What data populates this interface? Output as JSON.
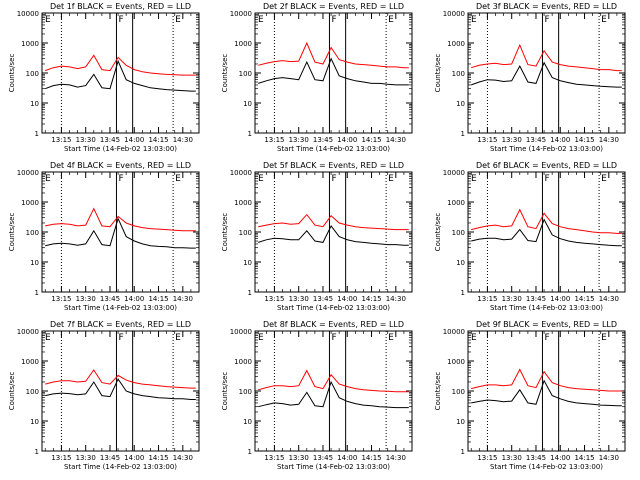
{
  "shared": {
    "xlabel": "Start Time (14-Feb-02 13:03:00)",
    "ylabel": "Counts/sec",
    "x_tick_labels": [
      "13:15",
      "13:30",
      "13:45",
      "14:00",
      "14:15",
      "14:30"
    ],
    "y_tick_labels": [
      "1",
      "10",
      "100",
      "1000",
      "10000"
    ],
    "marker_labels": [
      "E",
      "F",
      "E"
    ],
    "colors": {
      "events": "#000000",
      "lld": "#ff0000"
    }
  },
  "chart_data": [
    {
      "type": "line",
      "title": "Det 1f BLACK = Events, RED = LLD",
      "xlabel": "Start Time (14-Feb-02 13:03:00)",
      "ylabel": "Counts/sec",
      "yscale": "log",
      "xlim": [
        "13:03",
        "14:40"
      ],
      "ylim": [
        1,
        10000
      ],
      "x": [
        "13:05",
        "13:10",
        "13:15",
        "13:20",
        "13:25",
        "13:30",
        "13:35",
        "13:40",
        "13:45",
        "13:50",
        "13:55",
        "14:00",
        "14:05",
        "14:10",
        "14:15",
        "14:20",
        "14:25",
        "14:30",
        "14:35",
        "14:38"
      ],
      "vertical_lines": [
        {
          "time": "13:15",
          "style": "dotted"
        },
        {
          "time": "13:49",
          "style": "solid"
        },
        {
          "time": "13:59",
          "style": "solid"
        },
        {
          "time": "14:24",
          "style": "dotted"
        }
      ],
      "series": [
        {
          "name": "Events",
          "color": "#000000",
          "values": [
            30,
            38,
            42,
            40,
            34,
            38,
            90,
            32,
            30,
            250,
            60,
            45,
            38,
            32,
            30,
            28,
            27,
            26,
            25,
            25
          ]
        },
        {
          "name": "LLD",
          "color": "#ff0000",
          "values": [
            120,
            150,
            170,
            160,
            140,
            160,
            390,
            130,
            120,
            330,
            180,
            130,
            110,
            100,
            95,
            90,
            88,
            85,
            85,
            85
          ]
        }
      ]
    },
    {
      "type": "line",
      "title": "Det 2f BLACK = Events, RED = LLD",
      "xlabel": "Start Time (14-Feb-02 13:03:00)",
      "ylabel": "Counts/sec",
      "yscale": "log",
      "xlim": [
        "13:03",
        "14:40"
      ],
      "ylim": [
        1,
        10000
      ],
      "x": [
        "13:05",
        "13:10",
        "13:15",
        "13:20",
        "13:25",
        "13:30",
        "13:35",
        "13:40",
        "13:45",
        "13:50",
        "13:55",
        "14:00",
        "14:05",
        "14:10",
        "14:15",
        "14:20",
        "14:25",
        "14:30",
        "14:35",
        "14:38"
      ],
      "vertical_lines": [
        {
          "time": "13:15",
          "style": "dotted"
        },
        {
          "time": "13:49",
          "style": "solid"
        },
        {
          "time": "13:59",
          "style": "solid"
        },
        {
          "time": "14:24",
          "style": "dotted"
        }
      ],
      "series": [
        {
          "name": "Events",
          "color": "#000000",
          "values": [
            45,
            55,
            65,
            70,
            65,
            60,
            230,
            60,
            55,
            300,
            80,
            65,
            55,
            50,
            45,
            45,
            42,
            40,
            40,
            40
          ]
        },
        {
          "name": "LLD",
          "color": "#ff0000",
          "values": [
            180,
            210,
            240,
            260,
            240,
            250,
            1000,
            230,
            200,
            700,
            280,
            230,
            200,
            190,
            180,
            170,
            160,
            160,
            150,
            150
          ]
        }
      ]
    },
    {
      "type": "line",
      "title": "Det 3f BLACK = Events, RED = LLD",
      "xlabel": "Start Time (14-Feb-02 13:03:00)",
      "ylabel": "Counts/sec",
      "yscale": "log",
      "xlim": [
        "13:03",
        "14:40"
      ],
      "ylim": [
        1,
        10000
      ],
      "x": [
        "13:05",
        "13:10",
        "13:15",
        "13:20",
        "13:25",
        "13:30",
        "13:35",
        "13:40",
        "13:45",
        "13:50",
        "13:55",
        "14:00",
        "14:05",
        "14:10",
        "14:15",
        "14:20",
        "14:25",
        "14:30",
        "14:35",
        "14:38"
      ],
      "vertical_lines": [
        {
          "time": "13:15",
          "style": "dotted"
        },
        {
          "time": "13:49",
          "style": "solid"
        },
        {
          "time": "13:59",
          "style": "solid"
        },
        {
          "time": "14:24",
          "style": "dotted"
        }
      ],
      "series": [
        {
          "name": "Events",
          "color": "#000000",
          "values": [
            40,
            50,
            60,
            58,
            52,
            55,
            170,
            50,
            45,
            220,
            70,
            55,
            48,
            42,
            40,
            38,
            36,
            35,
            34,
            34
          ]
        },
        {
          "name": "LLD",
          "color": "#ff0000",
          "values": [
            150,
            180,
            200,
            210,
            190,
            200,
            850,
            190,
            170,
            550,
            230,
            190,
            170,
            160,
            150,
            140,
            130,
            130,
            120,
            120
          ]
        }
      ]
    },
    {
      "type": "line",
      "title": "Det 4f BLACK = Events, RED = LLD",
      "xlabel": "Start Time (14-Feb-02 13:03:00)",
      "ylabel": "Counts/sec",
      "yscale": "log",
      "xlim": [
        "13:03",
        "14:40"
      ],
      "ylim": [
        1,
        10000
      ],
      "x": [
        "13:05",
        "13:10",
        "13:15",
        "13:20",
        "13:25",
        "13:30",
        "13:35",
        "13:40",
        "13:45",
        "13:50",
        "13:55",
        "14:00",
        "14:05",
        "14:10",
        "14:15",
        "14:20",
        "14:25",
        "14:30",
        "14:35",
        "14:38"
      ],
      "vertical_lines": [
        {
          "time": "13:15",
          "style": "dotted"
        },
        {
          "time": "13:49",
          "style": "solid"
        },
        {
          "time": "13:59",
          "style": "solid"
        },
        {
          "time": "14:24",
          "style": "dotted"
        }
      ],
      "series": [
        {
          "name": "Events",
          "color": "#000000",
          "values": [
            35,
            40,
            42,
            40,
            36,
            40,
            110,
            38,
            35,
            280,
            70,
            50,
            40,
            35,
            33,
            32,
            30,
            30,
            29,
            29
          ]
        },
        {
          "name": "LLD",
          "color": "#ff0000",
          "values": [
            160,
            180,
            190,
            180,
            160,
            170,
            600,
            160,
            150,
            330,
            200,
            160,
            140,
            130,
            125,
            120,
            115,
            110,
            110,
            110
          ]
        }
      ]
    },
    {
      "type": "line",
      "title": "Det 5f BLACK = Events, RED = LLD",
      "xlabel": "Start Time (14-Feb-02 13:03:00)",
      "ylabel": "Counts/sec",
      "yscale": "log",
      "xlim": [
        "13:03",
        "14:40"
      ],
      "ylim": [
        1,
        10000
      ],
      "x": [
        "13:05",
        "13:10",
        "13:15",
        "13:20",
        "13:25",
        "13:30",
        "13:35",
        "13:40",
        "13:45",
        "13:50",
        "13:55",
        "14:00",
        "14:05",
        "14:10",
        "14:15",
        "14:20",
        "14:25",
        "14:30",
        "14:35",
        "14:38"
      ],
      "vertical_lines": [
        {
          "time": "13:15",
          "style": "dotted"
        },
        {
          "time": "13:49",
          "style": "solid"
        },
        {
          "time": "13:59",
          "style": "solid"
        },
        {
          "time": "14:24",
          "style": "dotted"
        }
      ],
      "series": [
        {
          "name": "Events",
          "color": "#000000",
          "values": [
            45,
            55,
            62,
            60,
            55,
            55,
            110,
            50,
            45,
            160,
            70,
            55,
            48,
            45,
            42,
            40,
            38,
            38,
            36,
            36
          ]
        },
        {
          "name": "LLD",
          "color": "#ff0000",
          "values": [
            150,
            170,
            190,
            200,
            180,
            190,
            380,
            170,
            150,
            350,
            200,
            170,
            150,
            140,
            135,
            130,
            125,
            120,
            120,
            120
          ]
        }
      ]
    },
    {
      "type": "line",
      "title": "Det 6f BLACK = Events, RED = LLD",
      "xlabel": "Start Time (14-Feb-02 13:03:00)",
      "ylabel": "Counts/sec",
      "yscale": "log",
      "xlim": [
        "13:03",
        "14:40"
      ],
      "ylim": [
        1,
        10000
      ],
      "x": [
        "13:05",
        "13:10",
        "13:15",
        "13:20",
        "13:25",
        "13:30",
        "13:35",
        "13:40",
        "13:45",
        "13:50",
        "13:55",
        "14:00",
        "14:05",
        "14:10",
        "14:15",
        "14:20",
        "14:25",
        "14:30",
        "14:35",
        "14:38"
      ],
      "vertical_lines": [
        {
          "time": "13:15",
          "style": "dotted"
        },
        {
          "time": "13:49",
          "style": "solid"
        },
        {
          "time": "13:59",
          "style": "solid"
        },
        {
          "time": "14:24",
          "style": "dotted"
        }
      ],
      "series": [
        {
          "name": "Events",
          "color": "#000000",
          "values": [
            50,
            58,
            62,
            62,
            55,
            58,
            120,
            52,
            48,
            260,
            80,
            60,
            50,
            45,
            42,
            40,
            38,
            36,
            35,
            35
          ]
        },
        {
          "name": "LLD",
          "color": "#ff0000",
          "values": [
            120,
            140,
            160,
            170,
            150,
            160,
            560,
            150,
            130,
            420,
            190,
            150,
            130,
            120,
            110,
            100,
            95,
            95,
            90,
            90
          ]
        }
      ]
    },
    {
      "type": "line",
      "title": "Det 7f BLACK = Events, RED = LLD",
      "xlabel": "Start Time (14-Feb-02 13:03:00)",
      "ylabel": "Counts/sec",
      "yscale": "log",
      "xlim": [
        "13:03",
        "14:40"
      ],
      "ylim": [
        1,
        10000
      ],
      "x": [
        "13:05",
        "13:10",
        "13:15",
        "13:20",
        "13:25",
        "13:30",
        "13:35",
        "13:40",
        "13:45",
        "13:50",
        "13:55",
        "14:00",
        "14:05",
        "14:10",
        "14:15",
        "14:20",
        "14:25",
        "14:30",
        "14:35",
        "14:38"
      ],
      "vertical_lines": [
        {
          "time": "13:15",
          "style": "dotted"
        },
        {
          "time": "13:49",
          "style": "solid"
        },
        {
          "time": "13:59",
          "style": "solid"
        },
        {
          "time": "14:24",
          "style": "dotted"
        }
      ],
      "series": [
        {
          "name": "Events",
          "color": "#000000",
          "values": [
            70,
            80,
            85,
            82,
            75,
            80,
            200,
            70,
            65,
            250,
            100,
            80,
            70,
            65,
            60,
            58,
            55,
            55,
            52,
            52
          ]
        },
        {
          "name": "LLD",
          "color": "#ff0000",
          "values": [
            170,
            200,
            220,
            220,
            200,
            210,
            500,
            190,
            170,
            330,
            230,
            190,
            170,
            160,
            150,
            140,
            135,
            130,
            125,
            125
          ]
        }
      ]
    },
    {
      "type": "line",
      "title": "Det 8f BLACK = Events, RED = LLD",
      "xlabel": "Start Time (14-Feb-02 13:03:00)",
      "ylabel": "Counts/sec",
      "yscale": "log",
      "xlim": [
        "13:03",
        "14:40"
      ],
      "ylim": [
        1,
        10000
      ],
      "x": [
        "13:05",
        "13:10",
        "13:15",
        "13:20",
        "13:25",
        "13:30",
        "13:35",
        "13:40",
        "13:45",
        "13:50",
        "13:55",
        "14:00",
        "14:05",
        "14:10",
        "14:15",
        "14:20",
        "14:25",
        "14:30",
        "14:35",
        "14:38"
      ],
      "vertical_lines": [
        {
          "time": "13:15",
          "style": "dotted"
        },
        {
          "time": "13:49",
          "style": "solid"
        },
        {
          "time": "13:59",
          "style": "solid"
        },
        {
          "time": "14:24",
          "style": "dotted"
        }
      ],
      "series": [
        {
          "name": "Events",
          "color": "#000000",
          "values": [
            30,
            35,
            40,
            38,
            34,
            36,
            90,
            32,
            30,
            200,
            60,
            45,
            38,
            34,
            32,
            30,
            29,
            28,
            28,
            28
          ]
        },
        {
          "name": "LLD",
          "color": "#ff0000",
          "values": [
            110,
            130,
            150,
            150,
            140,
            150,
            480,
            140,
            120,
            350,
            170,
            140,
            120,
            110,
            105,
            100,
            98,
            95,
            95,
            95
          ]
        }
      ]
    },
    {
      "type": "line",
      "title": "Det 9f BLACK = Events, RED = LLD",
      "xlabel": "Start Time (14-Feb-02 13:03:00)",
      "ylabel": "Counts/sec",
      "yscale": "log",
      "xlim": [
        "13:03",
        "14:40"
      ],
      "ylim": [
        1,
        10000
      ],
      "x": [
        "13:05",
        "13:10",
        "13:15",
        "13:20",
        "13:25",
        "13:30",
        "13:35",
        "13:40",
        "13:45",
        "13:50",
        "13:55",
        "14:00",
        "14:05",
        "14:10",
        "14:15",
        "14:20",
        "14:25",
        "14:30",
        "14:35",
        "14:38"
      ],
      "vertical_lines": [
        {
          "time": "13:15",
          "style": "dotted"
        },
        {
          "time": "13:49",
          "style": "solid"
        },
        {
          "time": "13:59",
          "style": "solid"
        },
        {
          "time": "14:24",
          "style": "dotted"
        }
      ],
      "series": [
        {
          "name": "Events",
          "color": "#000000",
          "values": [
            40,
            45,
            50,
            48,
            44,
            46,
            110,
            40,
            36,
            220,
            70,
            55,
            45,
            40,
            38,
            36,
            34,
            33,
            32,
            32
          ]
        },
        {
          "name": "LLD",
          "color": "#ff0000",
          "values": [
            120,
            140,
            160,
            160,
            150,
            160,
            520,
            150,
            130,
            440,
            190,
            150,
            130,
            120,
            115,
            110,
            105,
            100,
            100,
            100
          ]
        }
      ]
    }
  ]
}
